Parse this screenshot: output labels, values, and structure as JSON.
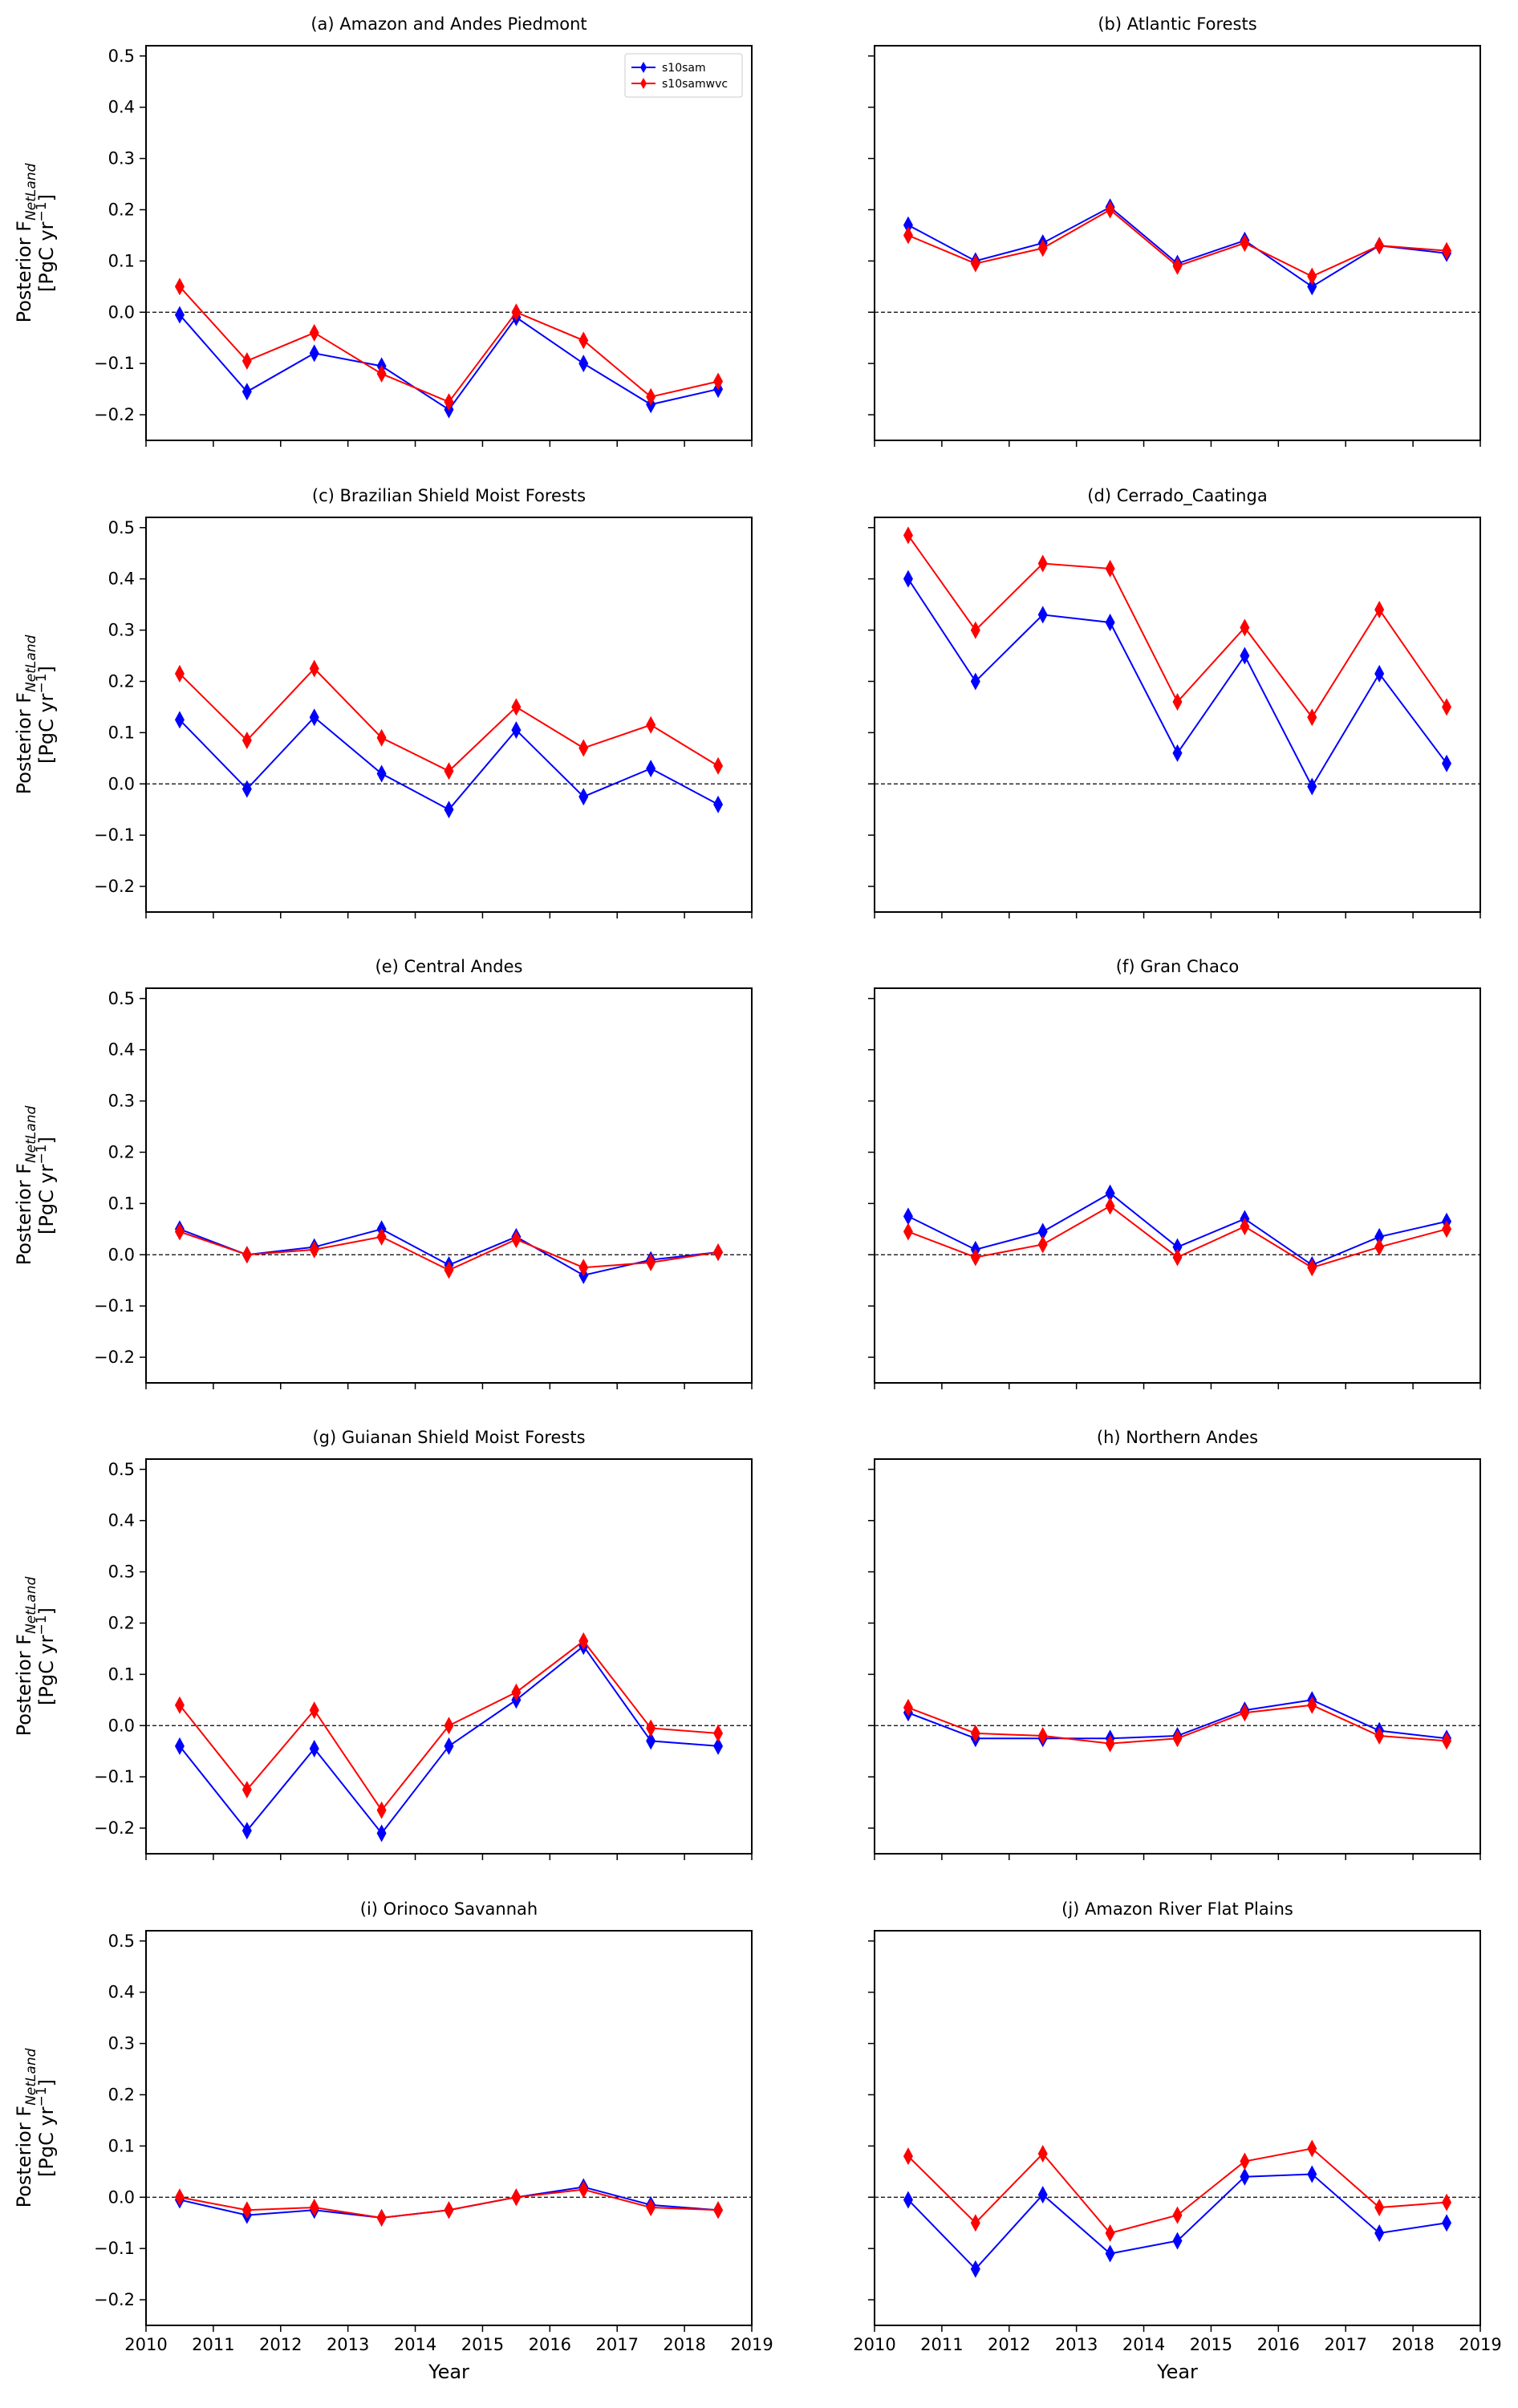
{
  "chart_data": [
    {
      "type": "line",
      "title": "(a) Amazon and Andes Piedmont",
      "x": [
        2010.5,
        2011.5,
        2012.5,
        2013.5,
        2014.5,
        2015.5,
        2016.5,
        2017.5,
        2018.5
      ],
      "series": [
        {
          "name": "s10sam",
          "color": "#0000ff",
          "values": [
            -0.005,
            -0.155,
            -0.08,
            -0.105,
            -0.19,
            -0.01,
            -0.1,
            -0.18,
            -0.15
          ]
        },
        {
          "name": "s10samwvc",
          "color": "#ff0000",
          "values": [
            0.05,
            -0.095,
            -0.04,
            -0.12,
            -0.175,
            0.0,
            -0.055,
            -0.165,
            -0.135
          ]
        }
      ],
      "legend": "upper right",
      "xlim": [
        2010,
        2019
      ],
      "xticks": [
        2010,
        2011,
        2012,
        2013,
        2014,
        2015,
        2016,
        2017,
        2018,
        2019
      ],
      "xtick_labels": false,
      "ylim": [
        -0.25,
        0.52
      ],
      "yticks": [
        {
          "value": -0.2,
          "label": "−0.2"
        },
        {
          "value": -0.1,
          "label": "−0.1"
        },
        {
          "value": 0,
          "label": "0.0"
        },
        0.1,
        0.2,
        0.3,
        0.4,
        0.5
      ],
      "ytick_labels": true,
      "ylabel": {
        "text": "Posterior F",
        "sub": "NetLand",
        "unit": "[PgC yr",
        "sup": "−1",
        "close": "]"
      },
      "hline": 0
    },
    {
      "type": "line",
      "title": "(b) Atlantic Forests",
      "x": [
        2010.5,
        2011.5,
        2012.5,
        2013.5,
        2014.5,
        2015.5,
        2016.5,
        2017.5,
        2018.5
      ],
      "series": [
        {
          "color": "#0000ff",
          "values": [
            0.17,
            0.1,
            0.135,
            0.205,
            0.095,
            0.14,
            0.05,
            0.13,
            0.115
          ]
        },
        {
          "color": "#ff0000",
          "values": [
            0.15,
            0.095,
            0.125,
            0.2,
            0.09,
            0.135,
            0.07,
            0.13,
            0.12
          ]
        }
      ],
      "xlim": [
        2010,
        2019
      ],
      "xticks": [
        2010,
        2011,
        2012,
        2013,
        2014,
        2015,
        2016,
        2017,
        2018,
        2019
      ],
      "xtick_labels": false,
      "ylim": [
        -0.25,
        0.52
      ],
      "yticks": [
        -0.2,
        -0.1,
        0,
        0.1,
        0.2,
        0.3,
        0.4,
        0.5
      ],
      "ytick_labels": false,
      "hline": 0
    },
    {
      "type": "line",
      "title": "(c) Brazilian Shield Moist Forests",
      "x": [
        2010.5,
        2011.5,
        2012.5,
        2013.5,
        2014.5,
        2015.5,
        2016.5,
        2017.5,
        2018.5
      ],
      "series": [
        {
          "color": "#0000ff",
          "values": [
            0.125,
            -0.01,
            0.13,
            0.02,
            -0.05,
            0.105,
            -0.025,
            0.03,
            -0.04
          ]
        },
        {
          "color": "#ff0000",
          "values": [
            0.215,
            0.085,
            0.225,
            0.09,
            0.025,
            0.15,
            0.07,
            0.115,
            0.035
          ]
        }
      ],
      "xlim": [
        2010,
        2019
      ],
      "xticks": [
        2010,
        2011,
        2012,
        2013,
        2014,
        2015,
        2016,
        2017,
        2018,
        2019
      ],
      "xtick_labels": false,
      "ylim": [
        -0.25,
        0.52
      ],
      "yticks": [
        {
          "value": -0.2,
          "label": "−0.2"
        },
        {
          "value": -0.1,
          "label": "−0.1"
        },
        {
          "value": 0,
          "label": "0.0"
        },
        0.1,
        0.2,
        0.3,
        0.4,
        0.5
      ],
      "ytick_labels": true,
      "ylabel": {
        "text": "Posterior F",
        "sub": "NetLand",
        "unit": "[PgC yr",
        "sup": "−1",
        "close": "]"
      },
      "hline": 0
    },
    {
      "type": "line",
      "title": "(d) Cerrado_Caatinga",
      "x": [
        2010.5,
        2011.5,
        2012.5,
        2013.5,
        2014.5,
        2015.5,
        2016.5,
        2017.5,
        2018.5
      ],
      "series": [
        {
          "color": "#0000ff",
          "values": [
            0.4,
            0.2,
            0.33,
            0.315,
            0.06,
            0.25,
            -0.005,
            0.215,
            0.04
          ]
        },
        {
          "color": "#ff0000",
          "values": [
            0.485,
            0.3,
            0.43,
            0.42,
            0.16,
            0.305,
            0.13,
            0.34,
            0.15
          ]
        }
      ],
      "xlim": [
        2010,
        2019
      ],
      "xticks": [
        2010,
        2011,
        2012,
        2013,
        2014,
        2015,
        2016,
        2017,
        2018,
        2019
      ],
      "xtick_labels": false,
      "ylim": [
        -0.25,
        0.52
      ],
      "yticks": [
        -0.2,
        -0.1,
        0,
        0.1,
        0.2,
        0.3,
        0.4,
        0.5
      ],
      "ytick_labels": false,
      "hline": 0
    },
    {
      "type": "line",
      "title": "(e) Central Andes",
      "x": [
        2010.5,
        2011.5,
        2012.5,
        2013.5,
        2014.5,
        2015.5,
        2016.5,
        2017.5,
        2018.5
      ],
      "series": [
        {
          "color": "#0000ff",
          "values": [
            0.05,
            0.0,
            0.015,
            0.05,
            -0.02,
            0.035,
            -0.04,
            -0.01,
            0.005
          ]
        },
        {
          "color": "#ff0000",
          "values": [
            0.045,
            0.0,
            0.01,
            0.035,
            -0.03,
            0.03,
            -0.025,
            -0.015,
            0.005
          ]
        }
      ],
      "xlim": [
        2010,
        2019
      ],
      "xticks": [
        2010,
        2011,
        2012,
        2013,
        2014,
        2015,
        2016,
        2017,
        2018,
        2019
      ],
      "xtick_labels": false,
      "ylim": [
        -0.25,
        0.52
      ],
      "yticks": [
        {
          "value": -0.2,
          "label": "−0.2"
        },
        {
          "value": -0.1,
          "label": "−0.1"
        },
        {
          "value": 0,
          "label": "0.0"
        },
        0.1,
        0.2,
        0.3,
        0.4,
        0.5
      ],
      "ytick_labels": true,
      "ylabel": {
        "text": "Posterior F",
        "sub": "NetLand",
        "unit": "[PgC yr",
        "sup": "−1",
        "close": "]"
      },
      "hline": 0
    },
    {
      "type": "line",
      "title": "(f) Gran Chaco",
      "x": [
        2010.5,
        2011.5,
        2012.5,
        2013.5,
        2014.5,
        2015.5,
        2016.5,
        2017.5,
        2018.5
      ],
      "series": [
        {
          "color": "#0000ff",
          "values": [
            0.075,
            0.01,
            0.045,
            0.12,
            0.015,
            0.07,
            -0.02,
            0.035,
            0.065
          ]
        },
        {
          "color": "#ff0000",
          "values": [
            0.045,
            -0.005,
            0.02,
            0.095,
            -0.005,
            0.055,
            -0.025,
            0.015,
            0.05
          ]
        }
      ],
      "xlim": [
        2010,
        2019
      ],
      "xticks": [
        2010,
        2011,
        2012,
        2013,
        2014,
        2015,
        2016,
        2017,
        2018,
        2019
      ],
      "xtick_labels": false,
      "ylim": [
        -0.25,
        0.52
      ],
      "yticks": [
        -0.2,
        -0.1,
        0,
        0.1,
        0.2,
        0.3,
        0.4,
        0.5
      ],
      "ytick_labels": false,
      "hline": 0
    },
    {
      "type": "line",
      "title": "(g) Guianan Shield Moist Forests",
      "x": [
        2010.5,
        2011.5,
        2012.5,
        2013.5,
        2014.5,
        2015.5,
        2016.5,
        2017.5,
        2018.5
      ],
      "series": [
        {
          "color": "#0000ff",
          "values": [
            -0.04,
            -0.205,
            -0.045,
            -0.21,
            -0.04,
            0.05,
            0.155,
            -0.03,
            -0.04
          ]
        },
        {
          "color": "#ff0000",
          "values": [
            0.04,
            -0.125,
            0.03,
            -0.165,
            0.0,
            0.065,
            0.165,
            -0.005,
            -0.015
          ]
        }
      ],
      "xlim": [
        2010,
        2019
      ],
      "xticks": [
        2010,
        2011,
        2012,
        2013,
        2014,
        2015,
        2016,
        2017,
        2018,
        2019
      ],
      "xtick_labels": false,
      "ylim": [
        -0.25,
        0.52
      ],
      "yticks": [
        {
          "value": -0.2,
          "label": "−0.2"
        },
        {
          "value": -0.1,
          "label": "−0.1"
        },
        {
          "value": 0,
          "label": "0.0"
        },
        0.1,
        0.2,
        0.3,
        0.4,
        0.5
      ],
      "ytick_labels": true,
      "ylabel": {
        "text": "Posterior F",
        "sub": "NetLand",
        "unit": "[PgC yr",
        "sup": "−1",
        "close": "]"
      },
      "hline": 0
    },
    {
      "type": "line",
      "title": "(h) Northern Andes",
      "x": [
        2010.5,
        2011.5,
        2012.5,
        2013.5,
        2014.5,
        2015.5,
        2016.5,
        2017.5,
        2018.5
      ],
      "series": [
        {
          "color": "#0000ff",
          "values": [
            0.025,
            -0.025,
            -0.025,
            -0.025,
            -0.02,
            0.03,
            0.05,
            -0.01,
            -0.025
          ]
        },
        {
          "color": "#ff0000",
          "values": [
            0.035,
            -0.015,
            -0.02,
            -0.035,
            -0.025,
            0.025,
            0.04,
            -0.02,
            -0.03
          ]
        }
      ],
      "xlim": [
        2010,
        2019
      ],
      "xticks": [
        2010,
        2011,
        2012,
        2013,
        2014,
        2015,
        2016,
        2017,
        2018,
        2019
      ],
      "xtick_labels": false,
      "ylim": [
        -0.25,
        0.52
      ],
      "yticks": [
        -0.2,
        -0.1,
        0,
        0.1,
        0.2,
        0.3,
        0.4,
        0.5
      ],
      "ytick_labels": false,
      "hline": 0
    },
    {
      "type": "line",
      "title": "(i) Orinoco Savannah",
      "x": [
        2010.5,
        2011.5,
        2012.5,
        2013.5,
        2014.5,
        2015.5,
        2016.5,
        2017.5,
        2018.5
      ],
      "series": [
        {
          "color": "#0000ff",
          "values": [
            -0.005,
            -0.035,
            -0.025,
            -0.04,
            -0.025,
            0.0,
            0.02,
            -0.015,
            -0.025
          ]
        },
        {
          "color": "#ff0000",
          "values": [
            0.0,
            -0.025,
            -0.02,
            -0.04,
            -0.025,
            0.0,
            0.015,
            -0.02,
            -0.025
          ]
        }
      ],
      "xlim": [
        2010,
        2019
      ],
      "xticks": [
        2010,
        2011,
        2012,
        2013,
        2014,
        2015,
        2016,
        2017,
        2018,
        2019
      ],
      "xtick_labels": true,
      "xlabel": "Year",
      "ylim": [
        -0.25,
        0.52
      ],
      "yticks": [
        {
          "value": -0.2,
          "label": "−0.2"
        },
        {
          "value": -0.1,
          "label": "−0.1"
        },
        {
          "value": 0,
          "label": "0.0"
        },
        0.1,
        0.2,
        0.3,
        0.4,
        0.5
      ],
      "ytick_labels": true,
      "ylabel": {
        "text": "Posterior F",
        "sub": "NetLand",
        "unit": "[PgC yr",
        "sup": "−1",
        "close": "]"
      },
      "hline": 0
    },
    {
      "type": "line",
      "title": "(j) Amazon River Flat Plains",
      "x": [
        2010.5,
        2011.5,
        2012.5,
        2013.5,
        2014.5,
        2015.5,
        2016.5,
        2017.5,
        2018.5
      ],
      "series": [
        {
          "color": "#0000ff",
          "values": [
            -0.005,
            -0.14,
            0.005,
            -0.11,
            -0.085,
            0.04,
            0.045,
            -0.07,
            -0.05
          ]
        },
        {
          "color": "#ff0000",
          "values": [
            0.08,
            -0.05,
            0.085,
            -0.07,
            -0.035,
            0.07,
            0.095,
            -0.02,
            -0.01
          ]
        }
      ],
      "xlim": [
        2010,
        2019
      ],
      "xticks": [
        2010,
        2011,
        2012,
        2013,
        2014,
        2015,
        2016,
        2017,
        2018,
        2019
      ],
      "xtick_labels": true,
      "xlabel": "Year",
      "ylim": [
        -0.25,
        0.52
      ],
      "yticks": [
        -0.2,
        -0.1,
        0,
        0.1,
        0.2,
        0.3,
        0.4,
        0.5
      ],
      "ytick_labels": false,
      "hline": 0
    }
  ]
}
